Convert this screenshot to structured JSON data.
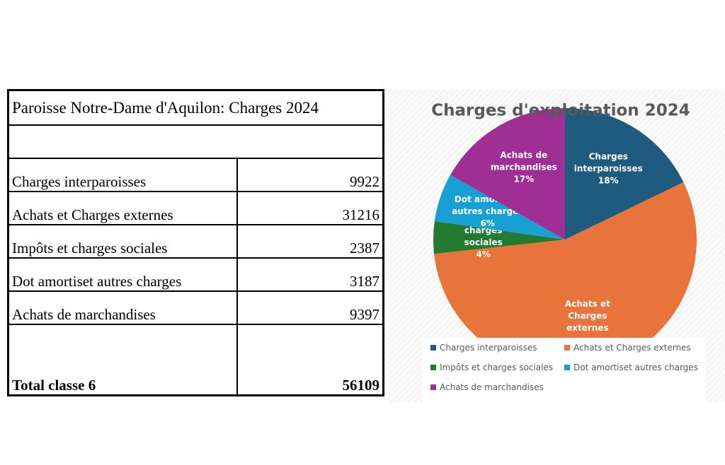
{
  "table": {
    "title": "Paroisse Notre-Dame d'Aquilon: Charges 2024",
    "rows": [
      [
        "Charges interparoisses",
        9922
      ],
      [
        "Achats et Charges externes",
        31216
      ],
      [
        "Impôts et charges sociales",
        2387
      ],
      [
        "Dot amortiset autres charges",
        3187
      ],
      [
        "Achats de marchandises",
        9397
      ]
    ],
    "total": [
      "Total classe 6",
      56109
    ]
  },
  "chart_data": {
    "type": "pie",
    "title": "Charges d'exploitation 2024",
    "categories": [
      "Charges interparoisses",
      "Achats et Charges externes",
      "Impôts et charges sociales",
      "Dot amortiset autres charges",
      "Achats de marchandises"
    ],
    "values": [
      18,
      56,
      4,
      6,
      17
    ],
    "value_labels": [
      "18%",
      null,
      "4%",
      "6%",
      "17%"
    ],
    "colors": [
      "#1f5b7e",
      "#e8743b",
      "#237a30",
      "#17a0d4",
      "#a02f95"
    ],
    "legend": "bottom"
  }
}
